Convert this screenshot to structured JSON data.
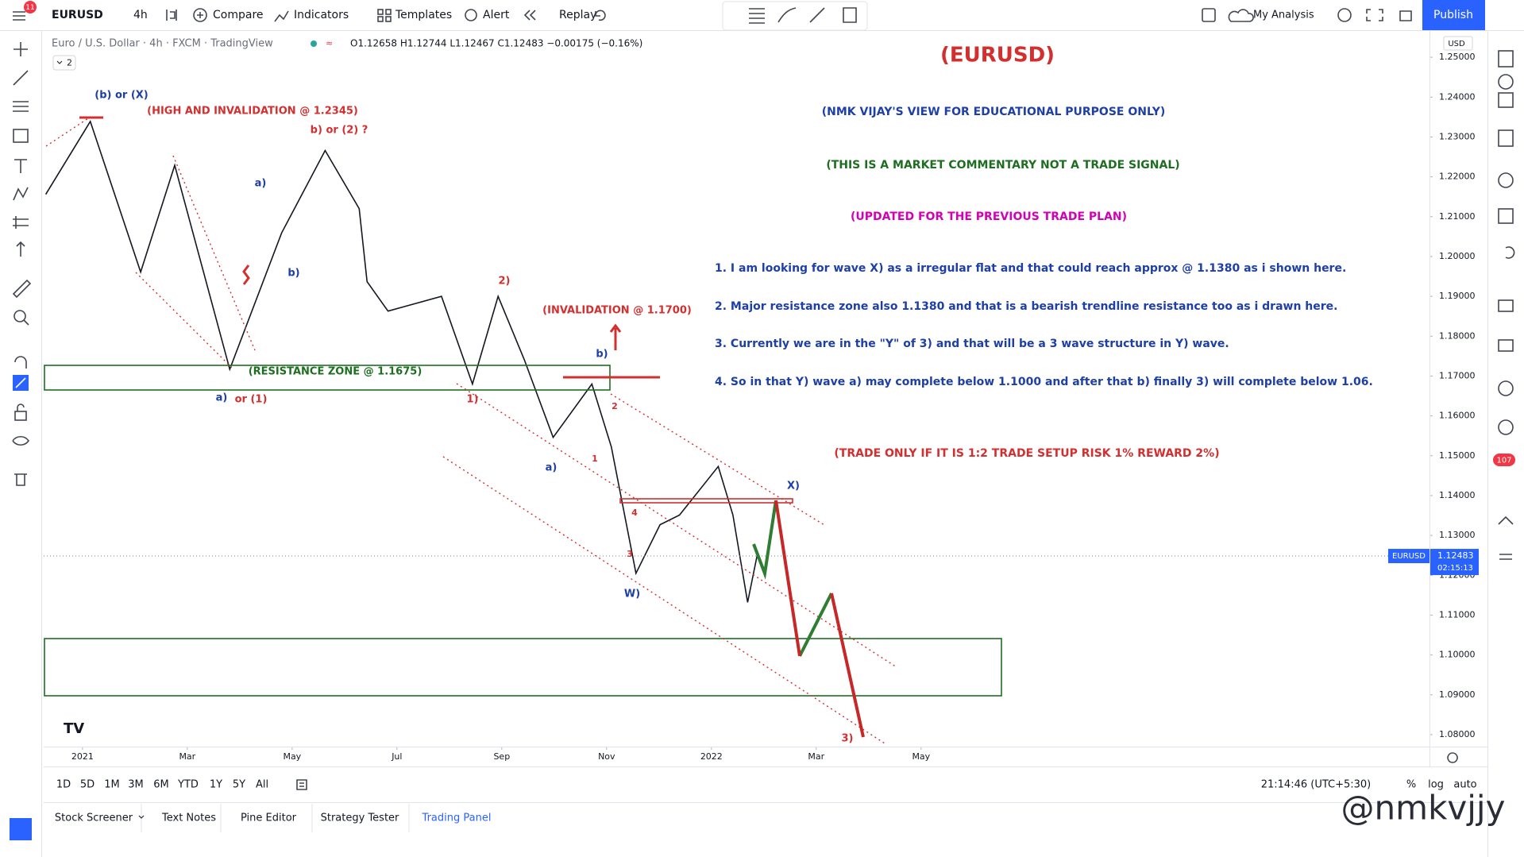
{
  "toolbar": {
    "symbol": "EURUSD",
    "interval": "4h",
    "compare": "Compare",
    "indicators": "Indicators",
    "templates": "Templates",
    "alert": "Alert",
    "replay": "Replay",
    "layout": "My Analysis",
    "publish": "Publish",
    "badge": "11"
  },
  "header": {
    "description": "Euro / U.S. Dollar · 4h · FXCM · TradingView",
    "ohlc": "O1.12658 H1.12744 L1.12467 C1.12483 −0.00175 (−0.16%)",
    "collapse": "2",
    "currency": "USD"
  },
  "chart_data": {
    "type": "line",
    "title": "(EURUSD)",
    "x": [
      -0.7,
      0.15,
      1.11,
      1.76,
      2.81,
      3.8,
      4.63,
      5.28,
      5.43,
      5.83,
      6.85,
      7.44,
      7.93,
      8.43,
      8.98,
      9.72,
      10.09,
      10.56,
      11.02,
      11.39,
      12.13,
      12.41,
      12.69,
      12.87
    ],
    "series": [
      {
        "name": "EURUSD",
        "color": "#131722",
        "values": [
          1.2156,
          1.2339,
          1.1961,
          1.2229,
          1.1717,
          1.2059,
          1.2266,
          1.212,
          1.1937,
          1.1863,
          1.19,
          1.168,
          1.19,
          1.1741,
          1.1546,
          1.168,
          1.1522,
          1.1205,
          1.1327,
          1.1351,
          1.1473,
          1.1351,
          1.1132,
          1.12483
        ]
      }
    ],
    "last_price": 1.12483,
    "countdown": "02:15:13",
    "xlim": [
      -0.74,
      25.7
    ],
    "ylim": [
      1.077,
      1.2568
    ],
    "xticks": [
      {
        "value": 0,
        "label": "2021"
      },
      {
        "value": 2,
        "label": "Mar"
      },
      {
        "value": 4,
        "label": "May"
      },
      {
        "value": 6,
        "label": "Jul"
      },
      {
        "value": 8,
        "label": "Sep"
      },
      {
        "value": 10,
        "label": "Nov"
      },
      {
        "value": 12,
        "label": "2022"
      },
      {
        "value": 14,
        "label": "Mar"
      },
      {
        "value": 16,
        "label": "May"
      }
    ],
    "yticks": [
      {
        "value": 1.08,
        "label": "1.08000"
      },
      {
        "value": 1.09,
        "label": "1.09000"
      },
      {
        "value": 1.1,
        "label": "1.10000"
      },
      {
        "value": 1.11,
        "label": "1.11000"
      },
      {
        "value": 1.12,
        "label": "1.12000"
      },
      {
        "value": 1.13,
        "label": "1.13000"
      },
      {
        "value": 1.14,
        "label": "1.14000"
      },
      {
        "value": 1.15,
        "label": "1.15000"
      },
      {
        "value": 1.16,
        "label": "1.16000"
      },
      {
        "value": 1.17,
        "label": "1.17000"
      },
      {
        "value": 1.18,
        "label": "1.18000"
      },
      {
        "value": 1.19,
        "label": "1.19000"
      },
      {
        "value": 1.2,
        "label": "1.20000"
      },
      {
        "value": 1.21,
        "label": "1.21000"
      },
      {
        "value": 1.22,
        "label": "1.22000"
      },
      {
        "value": 1.23,
        "label": "1.23000"
      },
      {
        "value": 1.24,
        "label": "1.24000"
      },
      {
        "value": 1.25,
        "label": "1.25000"
      }
    ],
    "grid": false
  },
  "annotations": {
    "view": "(NMK VIJAY'S VIEW FOR EDUCATIONAL PURPOSE ONLY)",
    "commentary": "(THIS IS A MARKET COMMENTARY NOT A TRADE SIGNAL)",
    "updated": "(UPDATED FOR THE PREVIOUS TRADE PLAN)",
    "notes": [
      "1. I am looking for wave X) as a irregular flat and that could reach approx @ 1.1380 as i shown here.",
      "2. Major resistance zone also 1.1380 and that is a bearish trendline resistance too as i drawn here.",
      "3. Currently we are in the \"Y\" of 3) and that will be a 3 wave structure in Y) wave.",
      "4. So in that Y) wave a) may complete below 1.1000  and after that b) finally 3) will complete below 1.06."
    ],
    "rule": "(TRADE ONLY IF IT IS 1:2 TRADE SETUP RISK 1% REWARD 2%)",
    "waves": [
      "(b) or (X)",
      "(HIGH AND INVALIDATION @ 1.2345)",
      "b)  or (2) ?",
      "a)",
      "b)",
      "(RESISTANCE ZONE @ 1.1675)",
      "a)",
      "or (1)",
      "2)",
      "1)",
      "(INVALIDATION @ 1.1700)",
      "b)",
      "2",
      "1",
      "a)",
      "4",
      "3",
      "W)",
      "X)",
      "3)"
    ]
  },
  "bottom": {
    "ranges": [
      "1D",
      "5D",
      "1M",
      "3M",
      "6M",
      "YTD",
      "1Y",
      "5Y",
      "All"
    ],
    "clock": "21:14:46 (UTC+5:30)",
    "percent": "%",
    "log": "log",
    "auto": "auto",
    "tabs": [
      "Stock Screener",
      "Text Notes",
      "Pine Editor",
      "Strategy Tester",
      "Trading Panel"
    ],
    "watermark": "@nmkvjjy",
    "alerts_badge": "107"
  }
}
